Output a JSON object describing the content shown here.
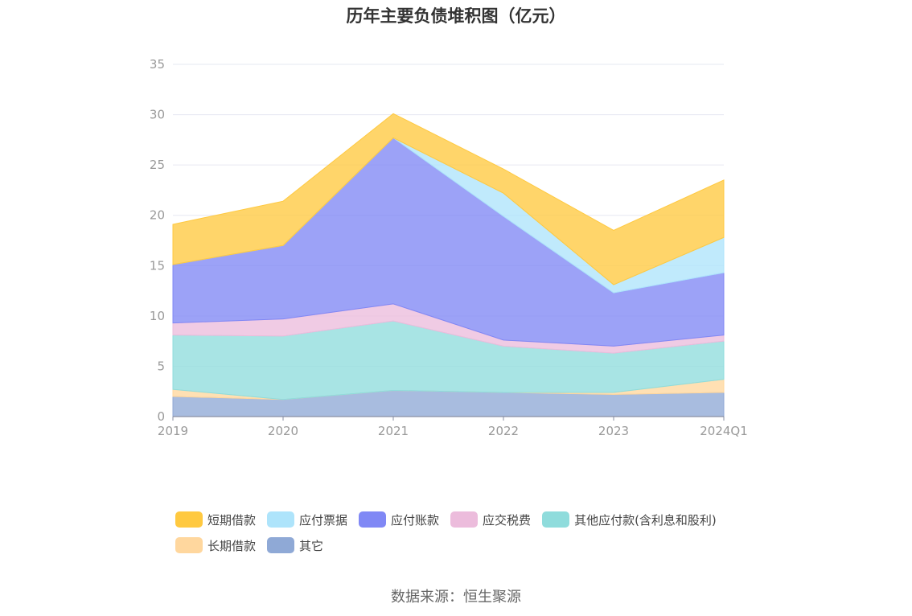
{
  "chart_data": {
    "type": "area",
    "stacked": true,
    "title": "历年主要负债堆积图（亿元）",
    "xlabel": "",
    "ylabel": "",
    "categories": [
      "2019",
      "2020",
      "2021",
      "2022",
      "2023",
      "2024Q1"
    ],
    "y_ticks": [
      "0",
      "5",
      "10",
      "15",
      "20",
      "25",
      "30",
      "35"
    ],
    "ylim": [
      0,
      35
    ],
    "grid": true,
    "legend_position": "bottom",
    "series": [
      {
        "name": "其它",
        "color": "#8fa9d6",
        "values": [
          2.0,
          1.7,
          2.6,
          2.4,
          2.2,
          2.4
        ]
      },
      {
        "name": "长期借款",
        "color": "#ffd79e",
        "values": [
          0.7,
          0.0,
          0.0,
          0.0,
          0.2,
          1.3
        ]
      },
      {
        "name": "其他应付款(含利息和股利)",
        "color": "#8fdcdc",
        "values": [
          5.4,
          6.3,
          6.9,
          4.6,
          3.9,
          3.8
        ]
      },
      {
        "name": "应交税费",
        "color": "#ecbcdc",
        "values": [
          1.2,
          1.7,
          1.7,
          0.6,
          0.7,
          0.6
        ]
      },
      {
        "name": "应付账款",
        "color": "#8088f5",
        "values": [
          5.8,
          7.3,
          16.5,
          12.3,
          5.3,
          6.2
        ]
      },
      {
        "name": "应付票据",
        "color": "#aee4fb",
        "values": [
          0.0,
          0.0,
          0.0,
          2.3,
          0.8,
          3.5
        ]
      },
      {
        "name": "短期借款",
        "color": "#ffc940",
        "values": [
          4.0,
          4.4,
          2.4,
          2.4,
          5.4,
          5.7
        ]
      }
    ]
  },
  "legend": {
    "row1": [
      {
        "label": "短期借款",
        "color": "#ffc940"
      },
      {
        "label": "应付票据",
        "color": "#aee4fb"
      },
      {
        "label": "应付账款",
        "color": "#8088f5"
      },
      {
        "label": "应交税费",
        "color": "#ecbcdc"
      },
      {
        "label": "其他应付款(含利息和股利)",
        "color": "#8fdcdc"
      }
    ],
    "row2": [
      {
        "label": "长期借款",
        "color": "#ffd79e"
      },
      {
        "label": "其它",
        "color": "#8fa9d6"
      }
    ]
  },
  "source": "数据来源：恒生聚源"
}
